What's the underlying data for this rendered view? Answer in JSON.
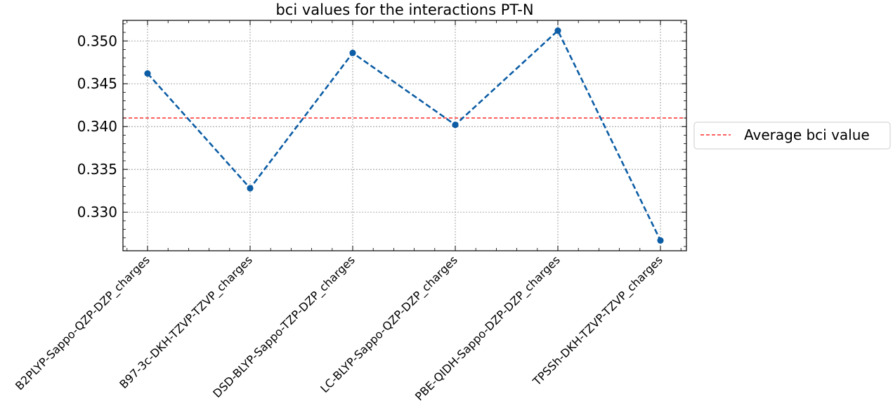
{
  "chart_data": {
    "type": "line",
    "title": "bci values for the interactions PT-N",
    "xlabel": "",
    "ylabel": "",
    "categories": [
      "B2PLYP-Sappo-QZP-DZP_charges",
      "B97-3c-DKH-TZVP-TZVP_charges",
      "DSD-BLYP-Sappo-TZP-DZP_charges",
      "LC-BLYP-Sappo-QZP-DZP_charges",
      "PBE-QIDH-Sappo-DZP-DZP_charges",
      "TPSSh-DKH-TZVP-TZVP_charges"
    ],
    "series": [
      {
        "values": [
          0.3462,
          0.3328,
          0.3486,
          0.3402,
          0.3512,
          0.3267
        ],
        "color": "#0c5da5",
        "style": "dashed",
        "marker": "circle"
      }
    ],
    "reference_lines": [
      {
        "name": "Average bci value",
        "value": 0.341,
        "color": "#ff0000",
        "style": "dashed"
      }
    ],
    "ylim": [
      0.3255,
      0.3524
    ],
    "yticks": [
      "0.330",
      "0.335",
      "0.340",
      "0.345",
      "0.350"
    ],
    "ytick_values": [
      0.33,
      0.335,
      0.34,
      0.345,
      0.35
    ],
    "grid": true,
    "legend": {
      "placement": "outside-right",
      "entries": [
        "Average bci value"
      ]
    }
  }
}
